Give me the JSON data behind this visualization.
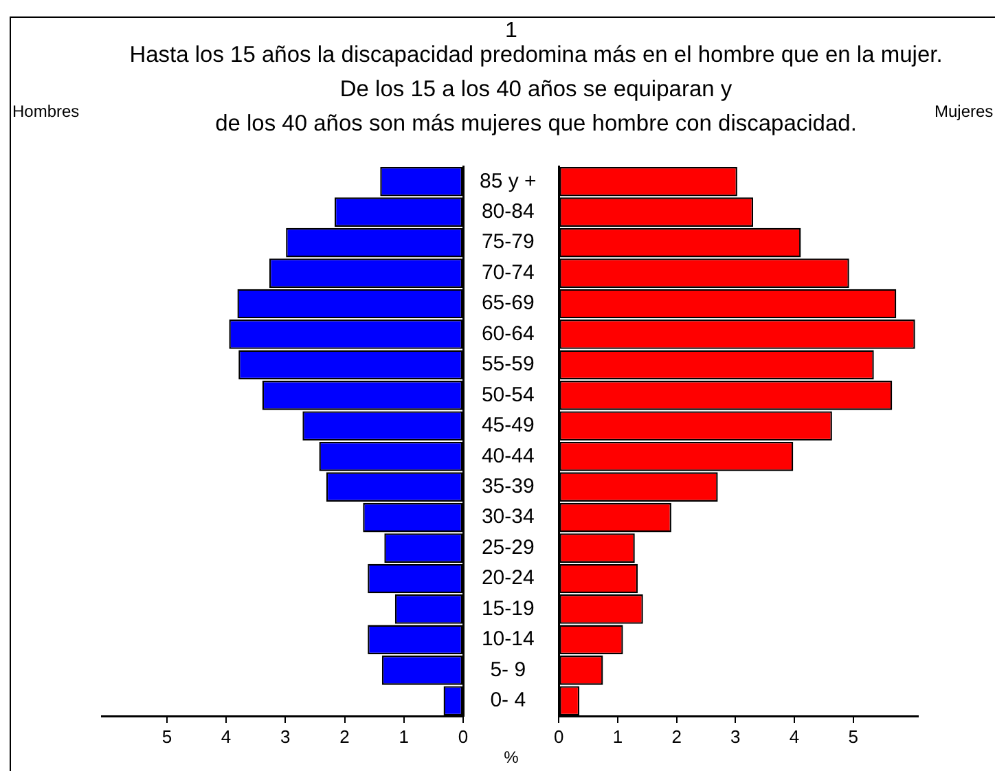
{
  "chart_data": [
    {
      "type": "bar",
      "orientation": "horizontal",
      "title": "Hasta los 15 años la discapacidad predomina más en el hombre que en la mujer.\nDe los 15 a los 40 años se equiparan y\nde los 40 años son más mujeres que hombre con discapacidad.",
      "annotations": [
        "1"
      ],
      "categories": [
        "85 y +",
        "80-84",
        "75-79",
        "70-74",
        "65-69",
        "60-64",
        "55-59",
        "50-54",
        "45-49",
        "40-44",
        "35-39",
        "30-34",
        "25-29",
        "20-24",
        "15-19",
        "10-14",
        "5- 9",
        "0- 4"
      ],
      "series": [
        {
          "name": "Hombres",
          "color": "#0000ff",
          "values": [
            1.4,
            2.17,
            2.99,
            3.27,
            3.81,
            3.95,
            3.79,
            3.39,
            2.71,
            2.43,
            2.31,
            1.69,
            1.33,
            1.61,
            1.15,
            1.61,
            1.37,
            0.33
          ]
        }
      ],
      "xlim": [
        6.1,
        0
      ],
      "xticks": [
        5,
        4,
        3,
        2,
        1,
        0
      ]
    },
    {
      "type": "bar",
      "orientation": "horizontal",
      "xlabel": "%",
      "categories": [
        null,
        null,
        null,
        null,
        null,
        null,
        null,
        null,
        null,
        null,
        null,
        null,
        null,
        null,
        null,
        null,
        null,
        null
      ],
      "series": [
        {
          "name": "Mujeres",
          "color": "#ff0000",
          "values": [
            3.03,
            3.3,
            4.11,
            4.93,
            5.73,
            6.05,
            5.35,
            5.66,
            4.64,
            3.98,
            2.7,
            1.91,
            1.29,
            1.34,
            1.43,
            1.09,
            0.75,
            0.35
          ]
        }
      ],
      "xlim": [
        0,
        6.1
      ],
      "xticks": [
        0,
        1,
        2,
        3,
        4,
        5
      ],
      "tick_labels": "x"
    }
  ]
}
